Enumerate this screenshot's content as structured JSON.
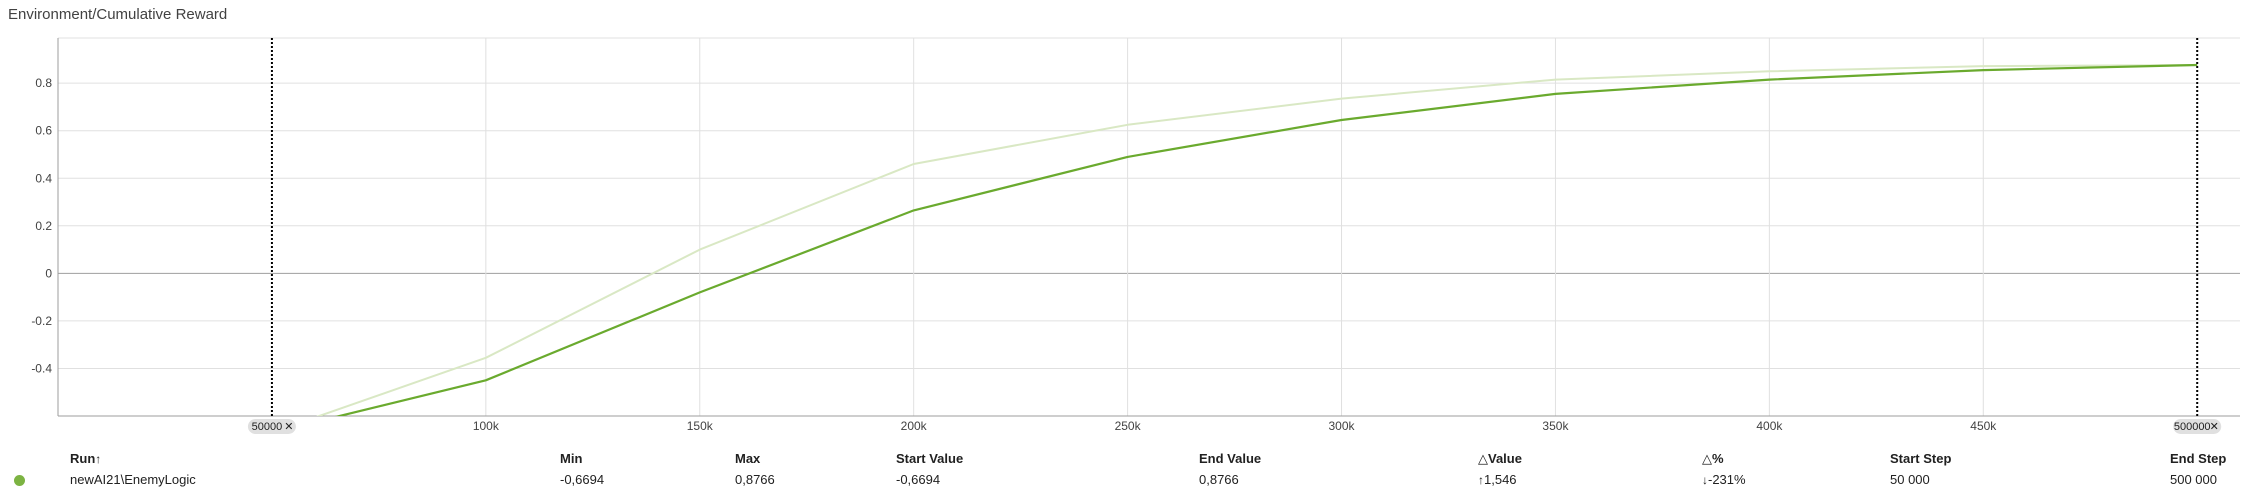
{
  "title": "Environment/Cumulative Reward",
  "colors": {
    "main_line": "#6aaa2e",
    "smoothed_line": "#d9e8c4",
    "grid": "#e0e0e0",
    "zero_line": "#9e9e9e",
    "axis": "#9e9e9e",
    "marker_line": "#000000",
    "chip_bg": "#e0e0e0",
    "run_dot": "#7cb342"
  },
  "range_markers": {
    "start_label": "50000",
    "end_label": "500000",
    "start_step": 50000,
    "end_step": 500000,
    "close_glyph": "✕"
  },
  "chart_data": {
    "type": "line",
    "title": "Environment/Cumulative Reward",
    "xlabel": "",
    "ylabel": "",
    "xlim": [
      0,
      510000
    ],
    "ylim": [
      -0.6,
      0.99
    ],
    "x_ticks": [
      100000,
      150000,
      200000,
      250000,
      300000,
      350000,
      400000,
      450000
    ],
    "x_tick_labels": [
      "100k",
      "150k",
      "200k",
      "250k",
      "300k",
      "350k",
      "400k",
      "450k"
    ],
    "y_ticks": [
      -0.4,
      -0.2,
      0,
      0.2,
      0.4,
      0.6,
      0.8
    ],
    "y_tick_labels": [
      "-0.4",
      "-0.2",
      "0",
      "0.2",
      "0.4",
      "0.6",
      "0.8"
    ],
    "grid": true,
    "series": [
      {
        "role": "raw",
        "x": [
          50000,
          100000,
          150000,
          200000,
          250000,
          300000,
          350000,
          400000,
          450000,
          500000
        ],
        "y": [
          -0.6694,
          -0.355,
          0.1,
          0.46,
          0.625,
          0.735,
          0.815,
          0.85,
          0.872,
          0.8766
        ]
      },
      {
        "role": "smoothed",
        "x": [
          50000,
          100000,
          150000,
          200000,
          250000,
          300000,
          350000,
          400000,
          450000,
          500000
        ],
        "y": [
          -0.6694,
          -0.45,
          -0.08,
          0.265,
          0.49,
          0.645,
          0.755,
          0.815,
          0.855,
          0.8766
        ]
      }
    ]
  },
  "table": {
    "headers": {
      "run": "Run",
      "run_sort_arrow": "↑",
      "min": "Min",
      "max": "Max",
      "start_value": "Start Value",
      "end_value": "End Value",
      "delta_value": "△Value",
      "delta_percent": "△%",
      "start_step": "Start Step",
      "end_step": "End Step"
    },
    "row": {
      "run": "newAI21\\EnemyLogic",
      "min": "-0,6694",
      "max": "0,8766",
      "start_value": "-0,6694",
      "end_value": "0,8766",
      "delta_value_arrow": "↑",
      "delta_value": "1,546",
      "delta_percent_arrow": "↓",
      "delta_percent": "-231%",
      "start_step": "50 000",
      "end_step": "500 000"
    }
  }
}
